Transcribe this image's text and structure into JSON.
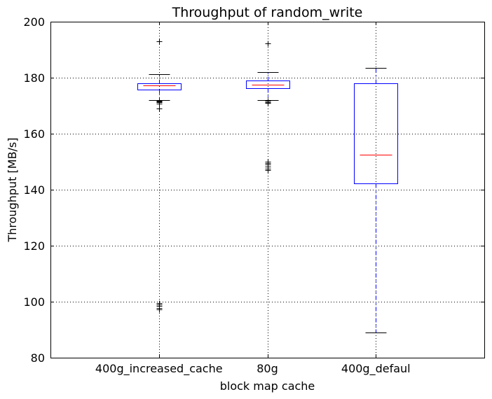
{
  "chart_data": {
    "type": "box",
    "title": "Throughput of random_write",
    "xlabel": "block map cache",
    "ylabel": "Throughput [MB/s]",
    "ylim": [
      80,
      200
    ],
    "yticks": [
      80,
      100,
      120,
      140,
      160,
      180,
      200
    ],
    "grid": true,
    "colors": {
      "box": "#0000ff",
      "median": "#ff0000",
      "whisker": "#0000ff",
      "cap": "#000000",
      "flier": "#000000",
      "grid": "#000000",
      "axis": "#000000"
    },
    "categories": [
      "400g_increased_cache",
      "80g",
      "400g_defaul"
    ],
    "boxes": [
      {
        "category": "400g_increased_cache",
        "whisker_low": 172,
        "q1": 175.8,
        "median": 177.2,
        "q3": 178.1,
        "whisker_high": 181.2,
        "outliers": [
          193,
          171.8,
          171.5,
          171.2,
          170.8,
          169,
          99.6,
          99,
          98.4,
          97.8,
          97.2
        ]
      },
      {
        "category": "80g",
        "whisker_low": 172,
        "q1": 176.2,
        "median": 177.5,
        "q3": 178.9,
        "whisker_high": 182.1,
        "outliers": [
          192.3,
          171.7,
          171.3,
          170.9,
          149.9,
          149.4,
          148.9,
          148.3,
          147.6,
          146.9
        ]
      },
      {
        "category": "400g_defaul",
        "whisker_low": 89,
        "q1": 142.3,
        "median": 152.6,
        "q3": 178.1,
        "whisker_high": 183.4,
        "outliers": []
      }
    ]
  }
}
